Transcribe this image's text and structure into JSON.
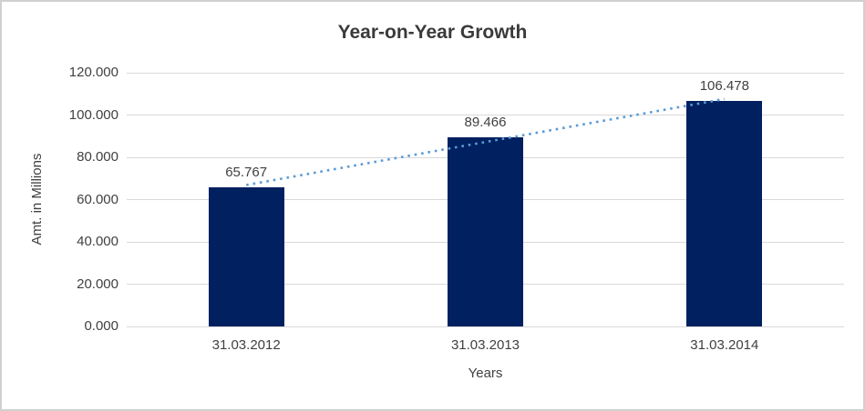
{
  "chart_data": {
    "type": "bar",
    "title": "Year-on-Year Growth",
    "xlabel": "Years",
    "ylabel": "Amt. in Millions",
    "categories": [
      "31.03.2012",
      "31.03.2013",
      "31.03.2014"
    ],
    "values": [
      65.767,
      89.466,
      106.478
    ],
    "data_labels": [
      "65.767",
      "89.466",
      "106.478"
    ],
    "ylim": [
      0,
      120
    ],
    "ytick_step": 20,
    "ytick_labels": [
      "0.000",
      "20.000",
      "40.000",
      "60.000",
      "80.000",
      "100.000",
      "120.000"
    ],
    "grid": true,
    "legend": "none",
    "colors": {
      "bar": "#002060",
      "trendline": "#5b9bd5",
      "gridline": "#d9d9d9",
      "text": "#404040",
      "title_text": "#3a3a3a",
      "border": "#d0d0d0"
    },
    "trendline": {
      "kind": "linear",
      "style": "dotted"
    }
  }
}
